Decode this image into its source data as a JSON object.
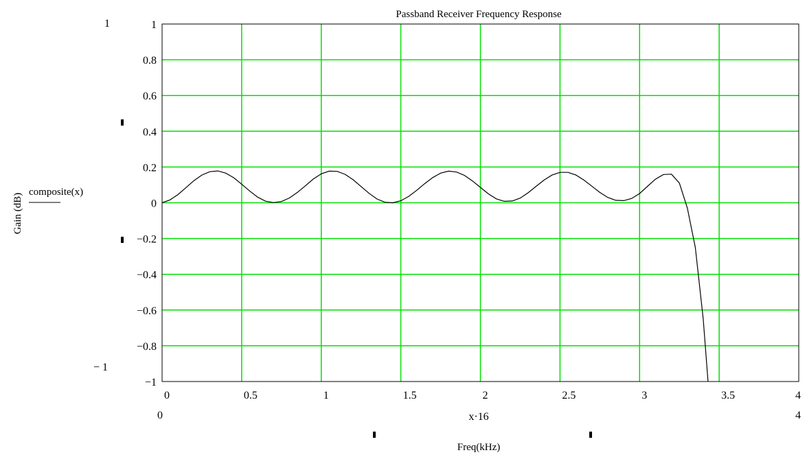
{
  "chart_data": {
    "type": "line",
    "title": "Passband Receiver Frequency Response",
    "xlabel": "Freq(kHz)",
    "ylabel": "Gain (dB)",
    "y_expression": "composite(x)",
    "x_expression": "x·16",
    "xlim": [
      0,
      4
    ],
    "ylim": [
      -1,
      1
    ],
    "x_ticks": [
      "0",
      "0.5",
      "1",
      "1.5",
      "2",
      "2.5",
      "3",
      "3.5",
      "4"
    ],
    "y_ticks": [
      "1",
      "0.8",
      "0.6",
      "0.4",
      "0.2",
      "0",
      "−0.2",
      "−0.4",
      "−0.6",
      "−0.8",
      "−1"
    ],
    "x_range_labels": {
      "min": "0",
      "max": "4"
    },
    "y_range_labels": {
      "max": "1",
      "min": "− 1"
    },
    "grid": true,
    "grid_color": "#00e000",
    "line_color": "#000000",
    "series": [
      {
        "x": [
          0,
          0.05,
          0.1,
          0.15,
          0.2,
          0.25,
          0.3,
          0.35,
          0.4,
          0.45,
          0.5,
          0.55,
          0.6,
          0.65,
          0.7,
          0.75,
          0.8,
          0.85,
          0.9,
          0.95,
          1.0,
          1.05,
          1.1,
          1.15,
          1.2,
          1.25,
          1.3,
          1.35,
          1.4,
          1.45,
          1.5,
          1.55,
          1.6,
          1.65,
          1.7,
          1.75,
          1.8,
          1.85,
          1.9,
          1.95,
          2.0,
          2.05,
          2.1,
          2.15,
          2.2,
          2.25,
          2.3,
          2.35,
          2.4,
          2.45,
          2.5,
          2.55,
          2.6,
          2.65,
          2.7,
          2.75,
          2.8,
          2.85,
          2.9,
          2.95,
          3.0,
          3.05,
          3.1,
          3.15,
          3.2,
          3.25,
          3.3,
          3.35,
          3.4,
          3.43
        ],
        "values": [
          0.0,
          0.016,
          0.046,
          0.085,
          0.124,
          0.155,
          0.174,
          0.178,
          0.166,
          0.14,
          0.104,
          0.066,
          0.032,
          0.009,
          0.001,
          0.007,
          0.027,
          0.058,
          0.095,
          0.133,
          0.162,
          0.177,
          0.176,
          0.159,
          0.129,
          0.091,
          0.053,
          0.021,
          0.003,
          0.0,
          0.011,
          0.036,
          0.07,
          0.107,
          0.141,
          0.166,
          0.177,
          0.172,
          0.153,
          0.122,
          0.086,
          0.05,
          0.022,
          0.008,
          0.01,
          0.026,
          0.056,
          0.092,
          0.127,
          0.155,
          0.17,
          0.17,
          0.155,
          0.127,
          0.093,
          0.058,
          0.03,
          0.014,
          0.012,
          0.024,
          0.052,
          0.092,
          0.132,
          0.158,
          0.16,
          0.11,
          -0.03,
          -0.25,
          -0.65,
          -1.0
        ]
      }
    ]
  }
}
